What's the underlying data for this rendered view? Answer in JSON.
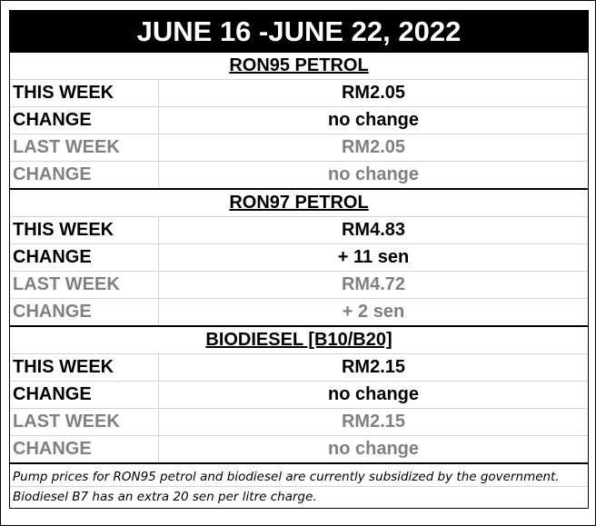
{
  "title": "JUNE 16 -JUNE 22, 2022",
  "sections": [
    {
      "title": "RON95 PETROL",
      "rows": [
        {
          "label": "THIS WEEK",
          "value": "RM2.05"
        },
        {
          "label": "CHANGE",
          "value": "no change"
        },
        {
          "label": "LAST WEEK",
          "value": "RM2.05"
        },
        {
          "label": "CHANGE",
          "value": "no change"
        }
      ]
    },
    {
      "title": "RON97 PETROL",
      "rows": [
        {
          "label": "THIS WEEK",
          "value": "RM4.83"
        },
        {
          "label": "CHANGE",
          "value": "+ 11 sen"
        },
        {
          "label": "LAST WEEK",
          "value": "RM4.72"
        },
        {
          "label": "CHANGE",
          "value": "+ 2 sen"
        }
      ]
    },
    {
      "title": "BIODIESEL [B10/B20]",
      "rows": [
        {
          "label": "THIS WEEK",
          "value": "RM2.15"
        },
        {
          "label": "CHANGE",
          "value": "no change"
        },
        {
          "label": "LAST WEEK",
          "value": "RM2.15"
        },
        {
          "label": "CHANGE",
          "value": "no change"
        }
      ]
    }
  ],
  "notes": [
    "Pump prices for RON95 petrol and biodiesel are currently subsidized by the government.",
    "Biodiesel B7 has an extra 20 sen per litre charge."
  ],
  "colors": {
    "current": "#000000",
    "previous": "#808080",
    "header_bg": "#000000"
  }
}
